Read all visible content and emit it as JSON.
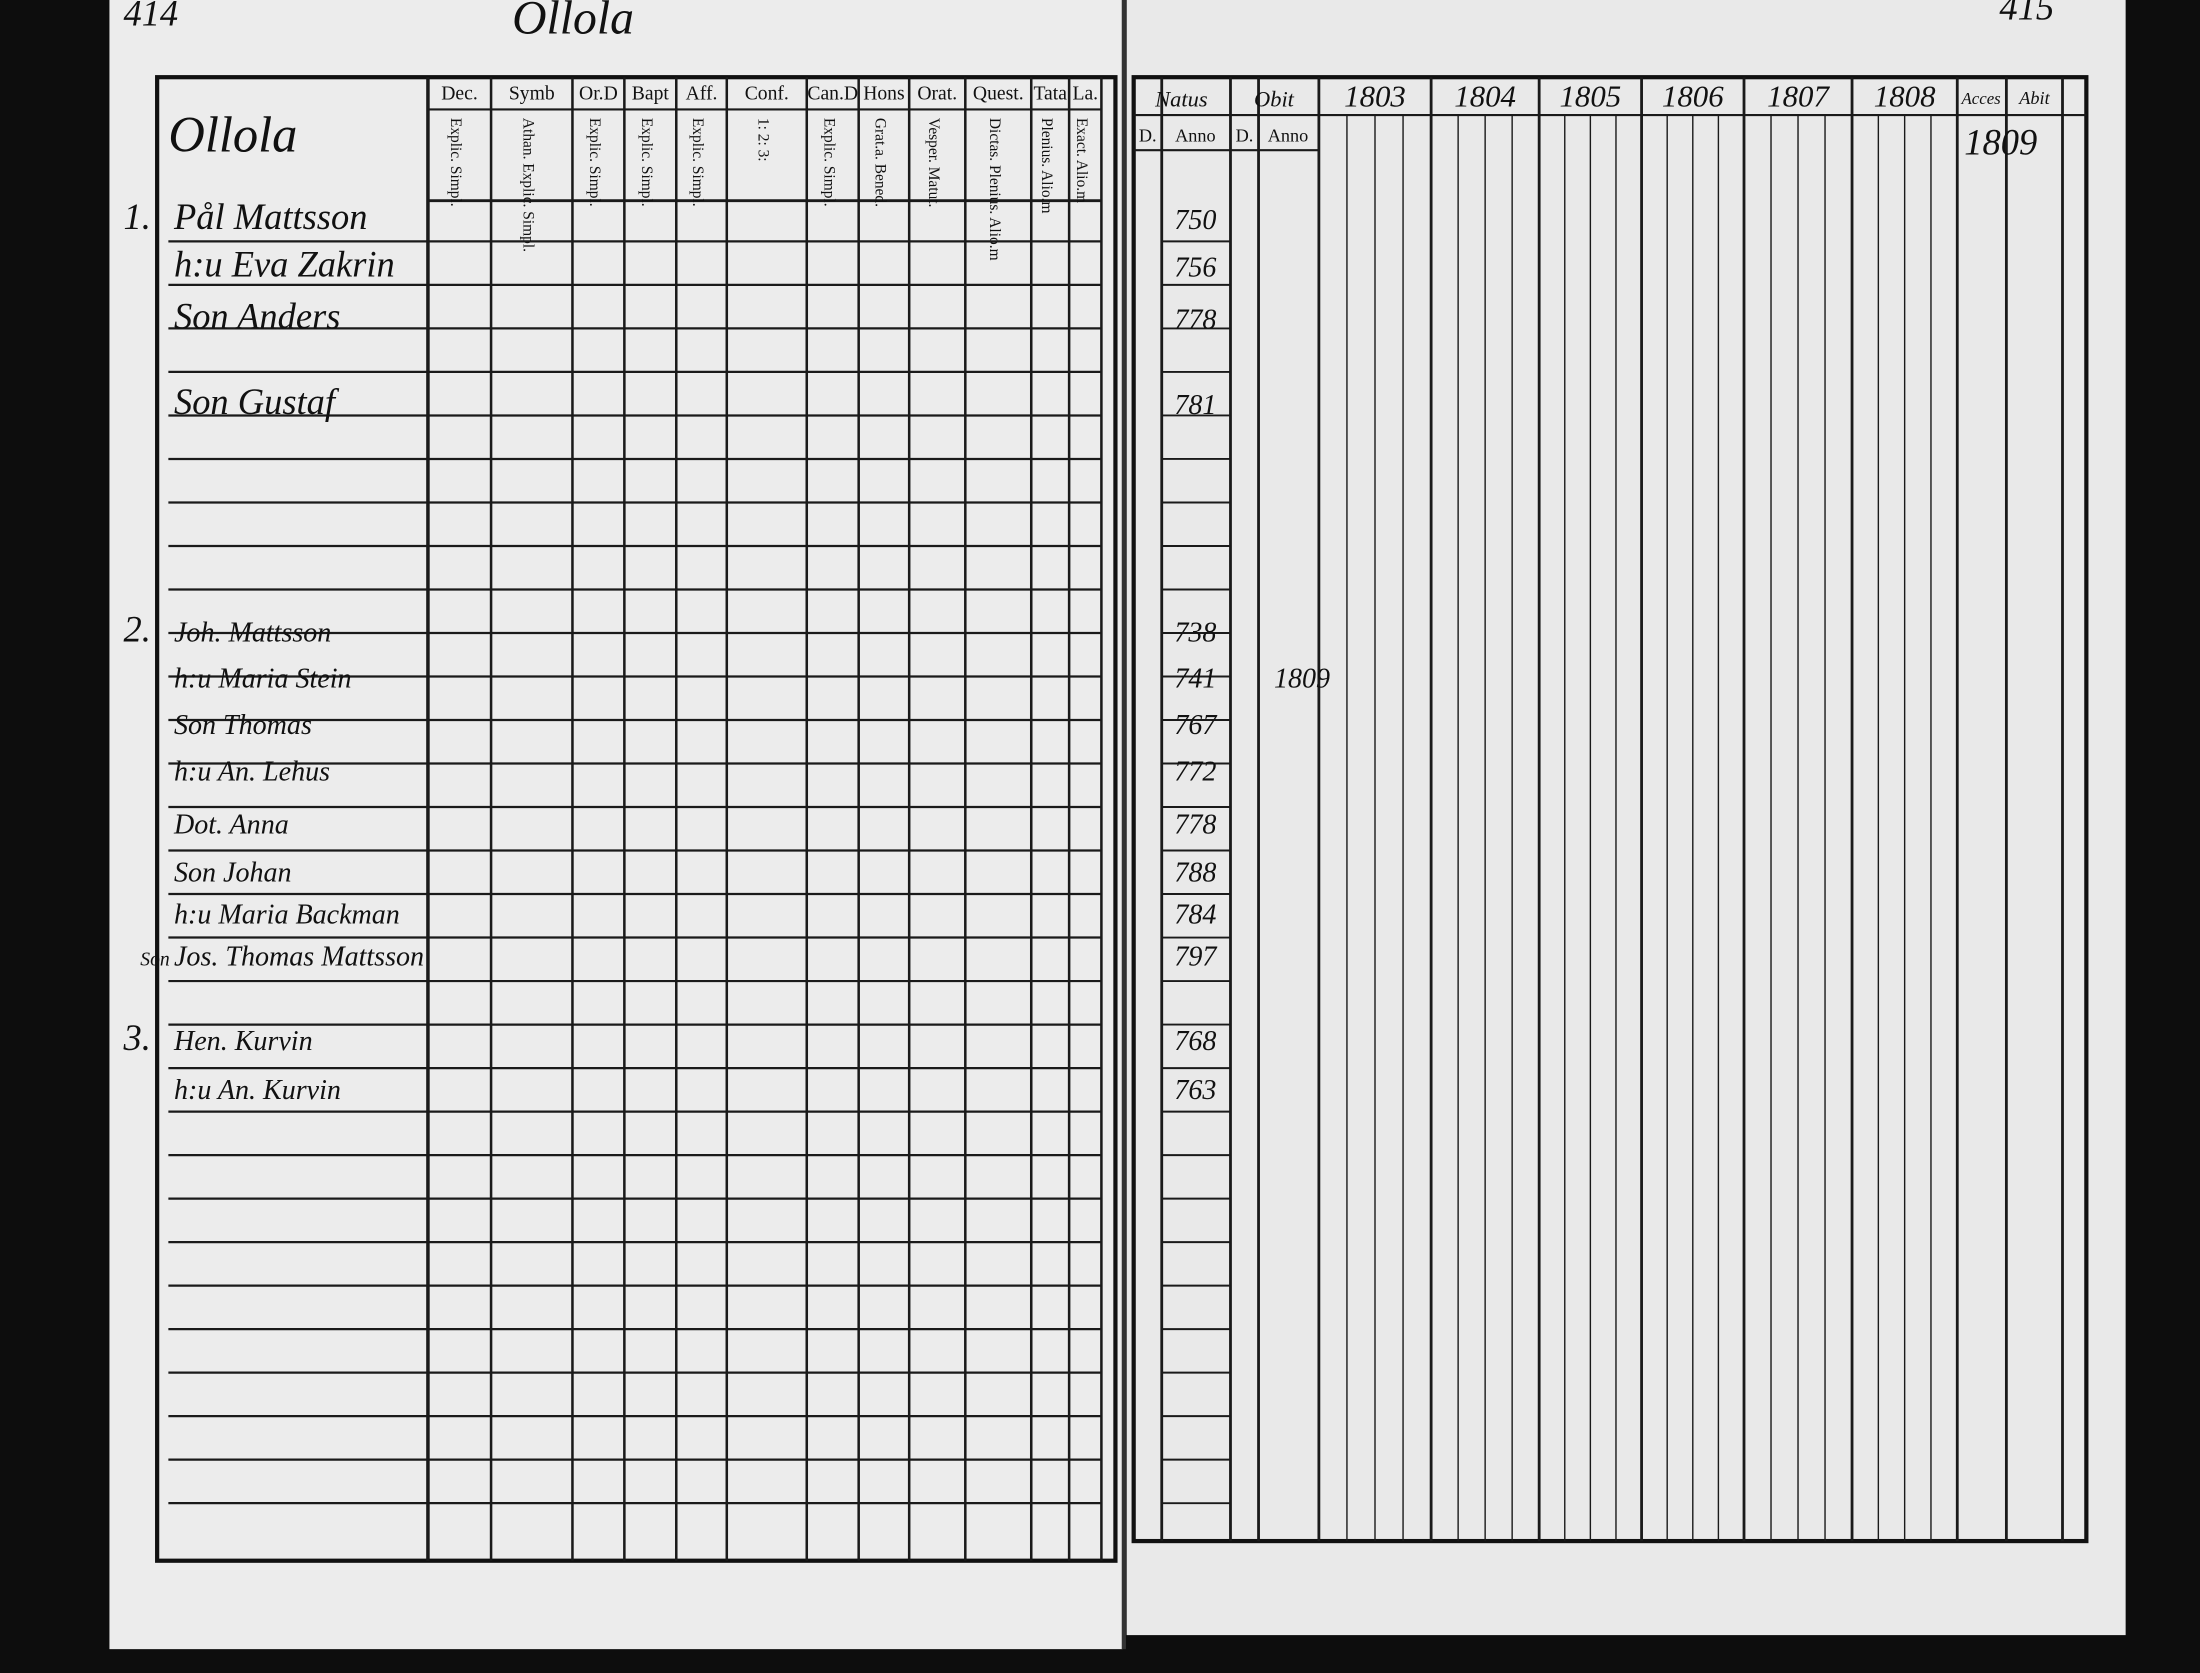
{
  "left_page": {
    "page_number": "414",
    "title": "Ollola",
    "table_label": "Ollola",
    "columns": [
      {
        "head": "Dec.",
        "sub": "Explic. Simpl."
      },
      {
        "head": "Symb",
        "sub": "Athan. Explic. Simpl."
      },
      {
        "head": "Or.D",
        "sub": "Explic. Simpl."
      },
      {
        "head": "Bapt",
        "sub": "Explic. Simpl."
      },
      {
        "head": "Aff.",
        "sub": "Explic. Simpl."
      },
      {
        "head": "Conf.",
        "sub": "1: 2: 3:"
      },
      {
        "head": "Can.D",
        "sub": "Explic. Simpl."
      },
      {
        "head": "Hons",
        "sub": "Grat.a. Bened."
      },
      {
        "head": "Orat.",
        "sub": "Vesper. Matut."
      },
      {
        "head": "Quest.",
        "sub": "Dictas. Plenius. Alio.m"
      },
      {
        "head": "Tata",
        "sub": "Plenius. Alio.m"
      },
      {
        "head": "La.",
        "sub": "Exact. Alio.m"
      }
    ],
    "rows": [
      {
        "number": "1.",
        "name": "Pål Mattsson"
      },
      {
        "name": "h:u Eva Zakrin"
      },
      {
        "name": "Son Anders"
      },
      {
        "name": "Son Gustaf"
      },
      {
        "number": "2.",
        "name": "Joh. Mattsson"
      },
      {
        "name": "h:u Maria Stein"
      },
      {
        "name": "Son Thomas"
      },
      {
        "name": "h:u An. Lehus"
      },
      {
        "name": "Dot. Anna"
      },
      {
        "name": "Son Johan"
      },
      {
        "name": "h:u Maria Backman"
      },
      {
        "side": "Son",
        "name": "Jos. Thomas Mattsson"
      },
      {
        "number": "3.",
        "name": "Hen. Kurvin"
      },
      {
        "name": "h:u An. Kurvin"
      }
    ]
  },
  "right_page": {
    "page_number": "415",
    "headers": {
      "natus": "Natus",
      "obit": "Obit",
      "day": "D.",
      "anno": "Anno",
      "accessit": "Acces",
      "abiit": "Abit"
    },
    "years": [
      "1803",
      "1804",
      "1805",
      "1806",
      "1807",
      "1808"
    ],
    "accessit_year": "1809",
    "births": [
      "750",
      "756",
      "778",
      "781",
      "738",
      "741",
      "767",
      "772",
      "778",
      "788",
      "784",
      "797",
      "768",
      "763"
    ],
    "deaths": [
      {
        "row": 5,
        "year": "1809"
      }
    ]
  }
}
